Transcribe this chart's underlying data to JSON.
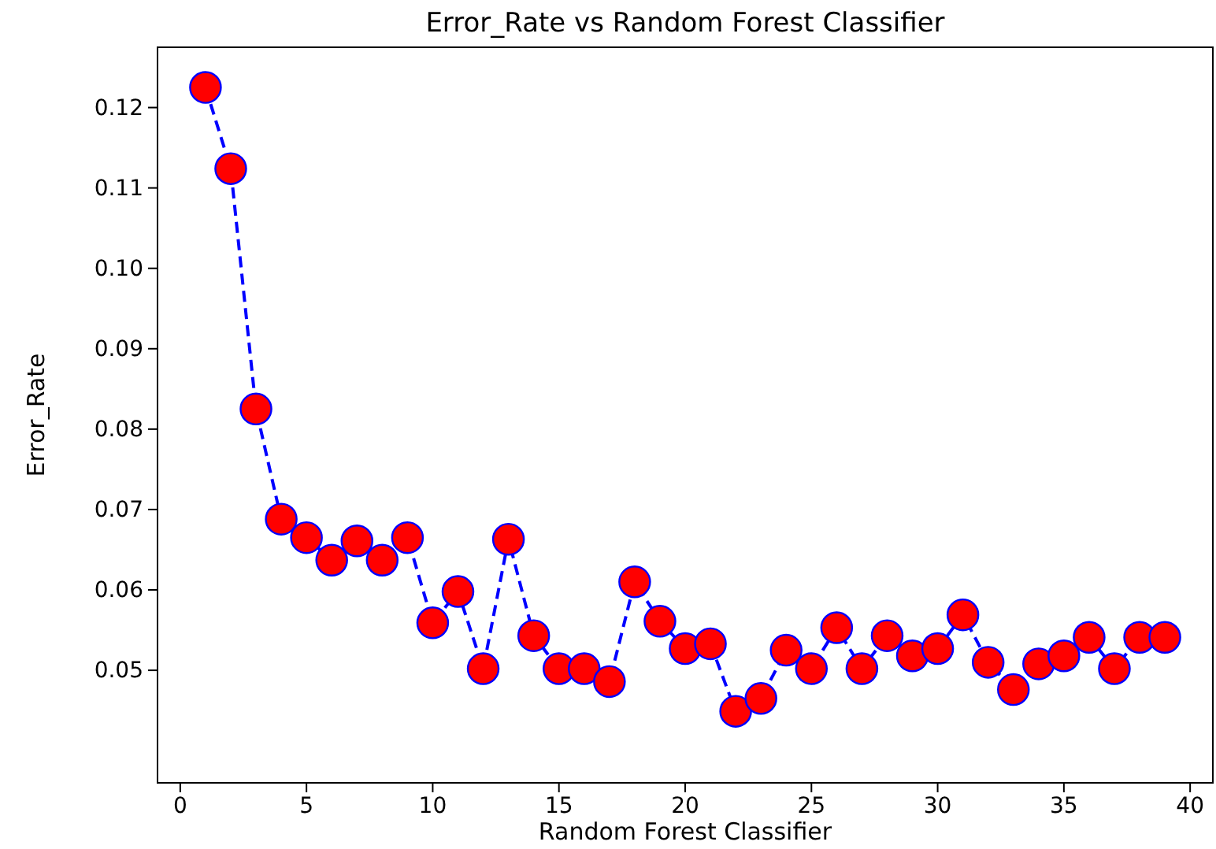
{
  "chart_data": {
    "type": "line",
    "title": "Error_Rate vs Random Forest Classifier",
    "xlabel": "Random Forest Classifier",
    "ylabel": "Error_Rate",
    "x": [
      1,
      2,
      3,
      4,
      5,
      6,
      7,
      8,
      9,
      10,
      11,
      12,
      13,
      14,
      15,
      16,
      17,
      18,
      19,
      20,
      21,
      22,
      23,
      24,
      25,
      26,
      27,
      28,
      29,
      30,
      31,
      32,
      33,
      34,
      35,
      36,
      37,
      38,
      39
    ],
    "series": [
      {
        "color": "#0000ff",
        "values": [
          0.1225,
          0.1124,
          0.0825,
          0.0688,
          0.0665,
          0.0637,
          0.0661,
          0.0637,
          0.0665,
          0.0559,
          0.0598,
          0.0502,
          0.0663,
          0.0543,
          0.0502,
          0.0502,
          0.0486,
          0.061,
          0.0561,
          0.0527,
          0.0533,
          0.0449,
          0.0465,
          0.0525,
          0.0502,
          0.0553,
          0.0502,
          0.0543,
          0.0518,
          0.0527,
          0.0569,
          0.051,
          0.0476,
          0.0508,
          0.0518,
          0.0541,
          0.0502,
          0.0541,
          0.0541
        ]
      }
    ],
    "xlim": [
      -0.9,
      40.9
    ],
    "xticks": [
      0,
      5,
      10,
      15,
      20,
      25,
      30,
      35,
      40
    ],
    "ylim": [
      0.036,
      0.1275
    ],
    "yticks": [
      {
        "value": 0.05,
        "label": "0.05"
      },
      {
        "value": 0.06,
        "label": "0.06"
      },
      {
        "value": 0.07,
        "label": "0.07"
      },
      {
        "value": 0.08,
        "label": "0.08"
      },
      {
        "value": 0.09,
        "label": "0.09"
      },
      {
        "value": 0.1,
        "label": "0.10"
      },
      {
        "value": 0.11,
        "label": "0.11"
      },
      {
        "value": 0.12,
        "label": "0.12"
      }
    ],
    "marker": "circle",
    "line_style": "dashed",
    "grid": false
  }
}
